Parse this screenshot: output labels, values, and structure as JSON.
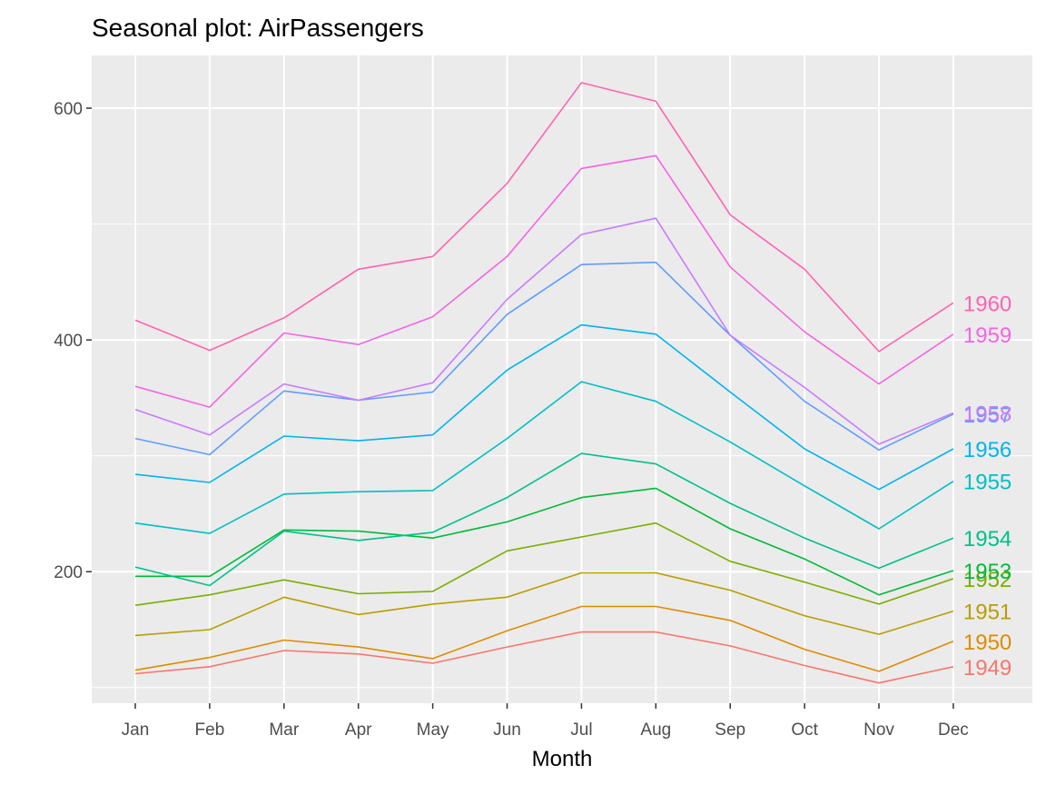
{
  "chart_data": {
    "type": "line",
    "title": "Seasonal plot: AirPassengers",
    "xlabel": "Month",
    "ylabel": "",
    "categories": [
      "Jan",
      "Feb",
      "Mar",
      "Apr",
      "May",
      "Jun",
      "Jul",
      "Aug",
      "Sep",
      "Oct",
      "Nov",
      "Dec"
    ],
    "yticks": [
      200,
      400,
      600
    ],
    "ylim": [
      86.5,
      645.5
    ],
    "grid": true,
    "legend": "labels at line ends (right)",
    "series": [
      {
        "name": "1949",
        "color": "#F8766D",
        "values": [
          112,
          118,
          132,
          129,
          121,
          135,
          148,
          148,
          136,
          119,
          104,
          118
        ]
      },
      {
        "name": "1950",
        "color": "#DE8C00",
        "values": [
          115,
          126,
          141,
          135,
          125,
          149,
          170,
          170,
          158,
          133,
          114,
          140
        ]
      },
      {
        "name": "1951",
        "color": "#B79F00",
        "values": [
          145,
          150,
          178,
          163,
          172,
          178,
          199,
          199,
          184,
          162,
          146,
          166
        ]
      },
      {
        "name": "1952",
        "color": "#7CAE00",
        "values": [
          171,
          180,
          193,
          181,
          183,
          218,
          230,
          242,
          209,
          191,
          172,
          194
        ]
      },
      {
        "name": "1953",
        "color": "#00BA38",
        "values": [
          196,
          196,
          236,
          235,
          229,
          243,
          264,
          272,
          237,
          211,
          180,
          201
        ]
      },
      {
        "name": "1954",
        "color": "#00C08B",
        "values": [
          204,
          188,
          235,
          227,
          234,
          264,
          302,
          293,
          259,
          229,
          203,
          229
        ]
      },
      {
        "name": "1955",
        "color": "#00BFC4",
        "values": [
          242,
          233,
          267,
          269,
          270,
          315,
          364,
          347,
          312,
          274,
          237,
          278
        ]
      },
      {
        "name": "1956",
        "color": "#00B4F0",
        "values": [
          284,
          277,
          317,
          313,
          318,
          374,
          413,
          405,
          355,
          306,
          271,
          306
        ]
      },
      {
        "name": "1957",
        "color": "#619CFF",
        "values": [
          315,
          301,
          356,
          348,
          355,
          422,
          465,
          467,
          404,
          347,
          305,
          336
        ]
      },
      {
        "name": "1958",
        "color": "#C77CFF",
        "values": [
          340,
          318,
          362,
          348,
          363,
          435,
          491,
          505,
          404,
          359,
          310,
          337
        ]
      },
      {
        "name": "1959",
        "color": "#F564E3",
        "values": [
          360,
          342,
          406,
          396,
          420,
          472,
          548,
          559,
          463,
          407,
          362,
          405
        ]
      },
      {
        "name": "1960",
        "color": "#FF64B0",
        "values": [
          417,
          391,
          419,
          461,
          472,
          535,
          622,
          606,
          508,
          461,
          390,
          432
        ]
      }
    ],
    "colors": {
      "panel_background": "#EBEBEB",
      "grid_major": "#FFFFFF",
      "tick_text": "#4D4D4D"
    }
  }
}
